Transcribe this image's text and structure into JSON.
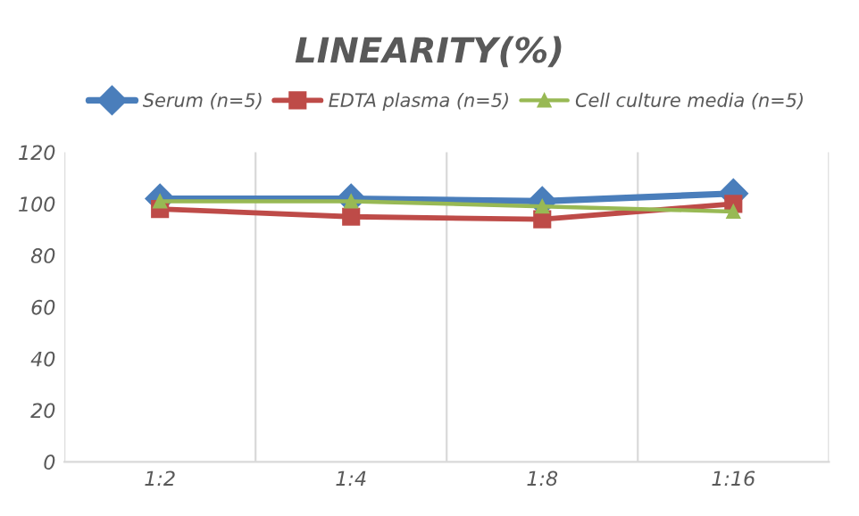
{
  "chart_data": {
    "type": "line",
    "title": "LINEARITY(%)",
    "categories": [
      "1:2",
      "1:4",
      "1:8",
      "1:16"
    ],
    "series": [
      {
        "name": "Serum (n=5)",
        "color": "#4a7ebb",
        "marker": "diamond",
        "values": [
          102,
          102,
          101,
          104
        ]
      },
      {
        "name": "EDTA plasma (n=5)",
        "color": "#be4b48",
        "marker": "square",
        "values": [
          98,
          95,
          94,
          100
        ]
      },
      {
        "name": "Cell culture media (n=5)",
        "color": "#98b954",
        "marker": "triangle",
        "values": [
          101,
          101,
          99,
          97
        ]
      }
    ],
    "ylim": [
      0,
      120
    ],
    "yticks": [
      0,
      20,
      40,
      60,
      80,
      100,
      120
    ],
    "grid": "x",
    "legend": "top"
  }
}
